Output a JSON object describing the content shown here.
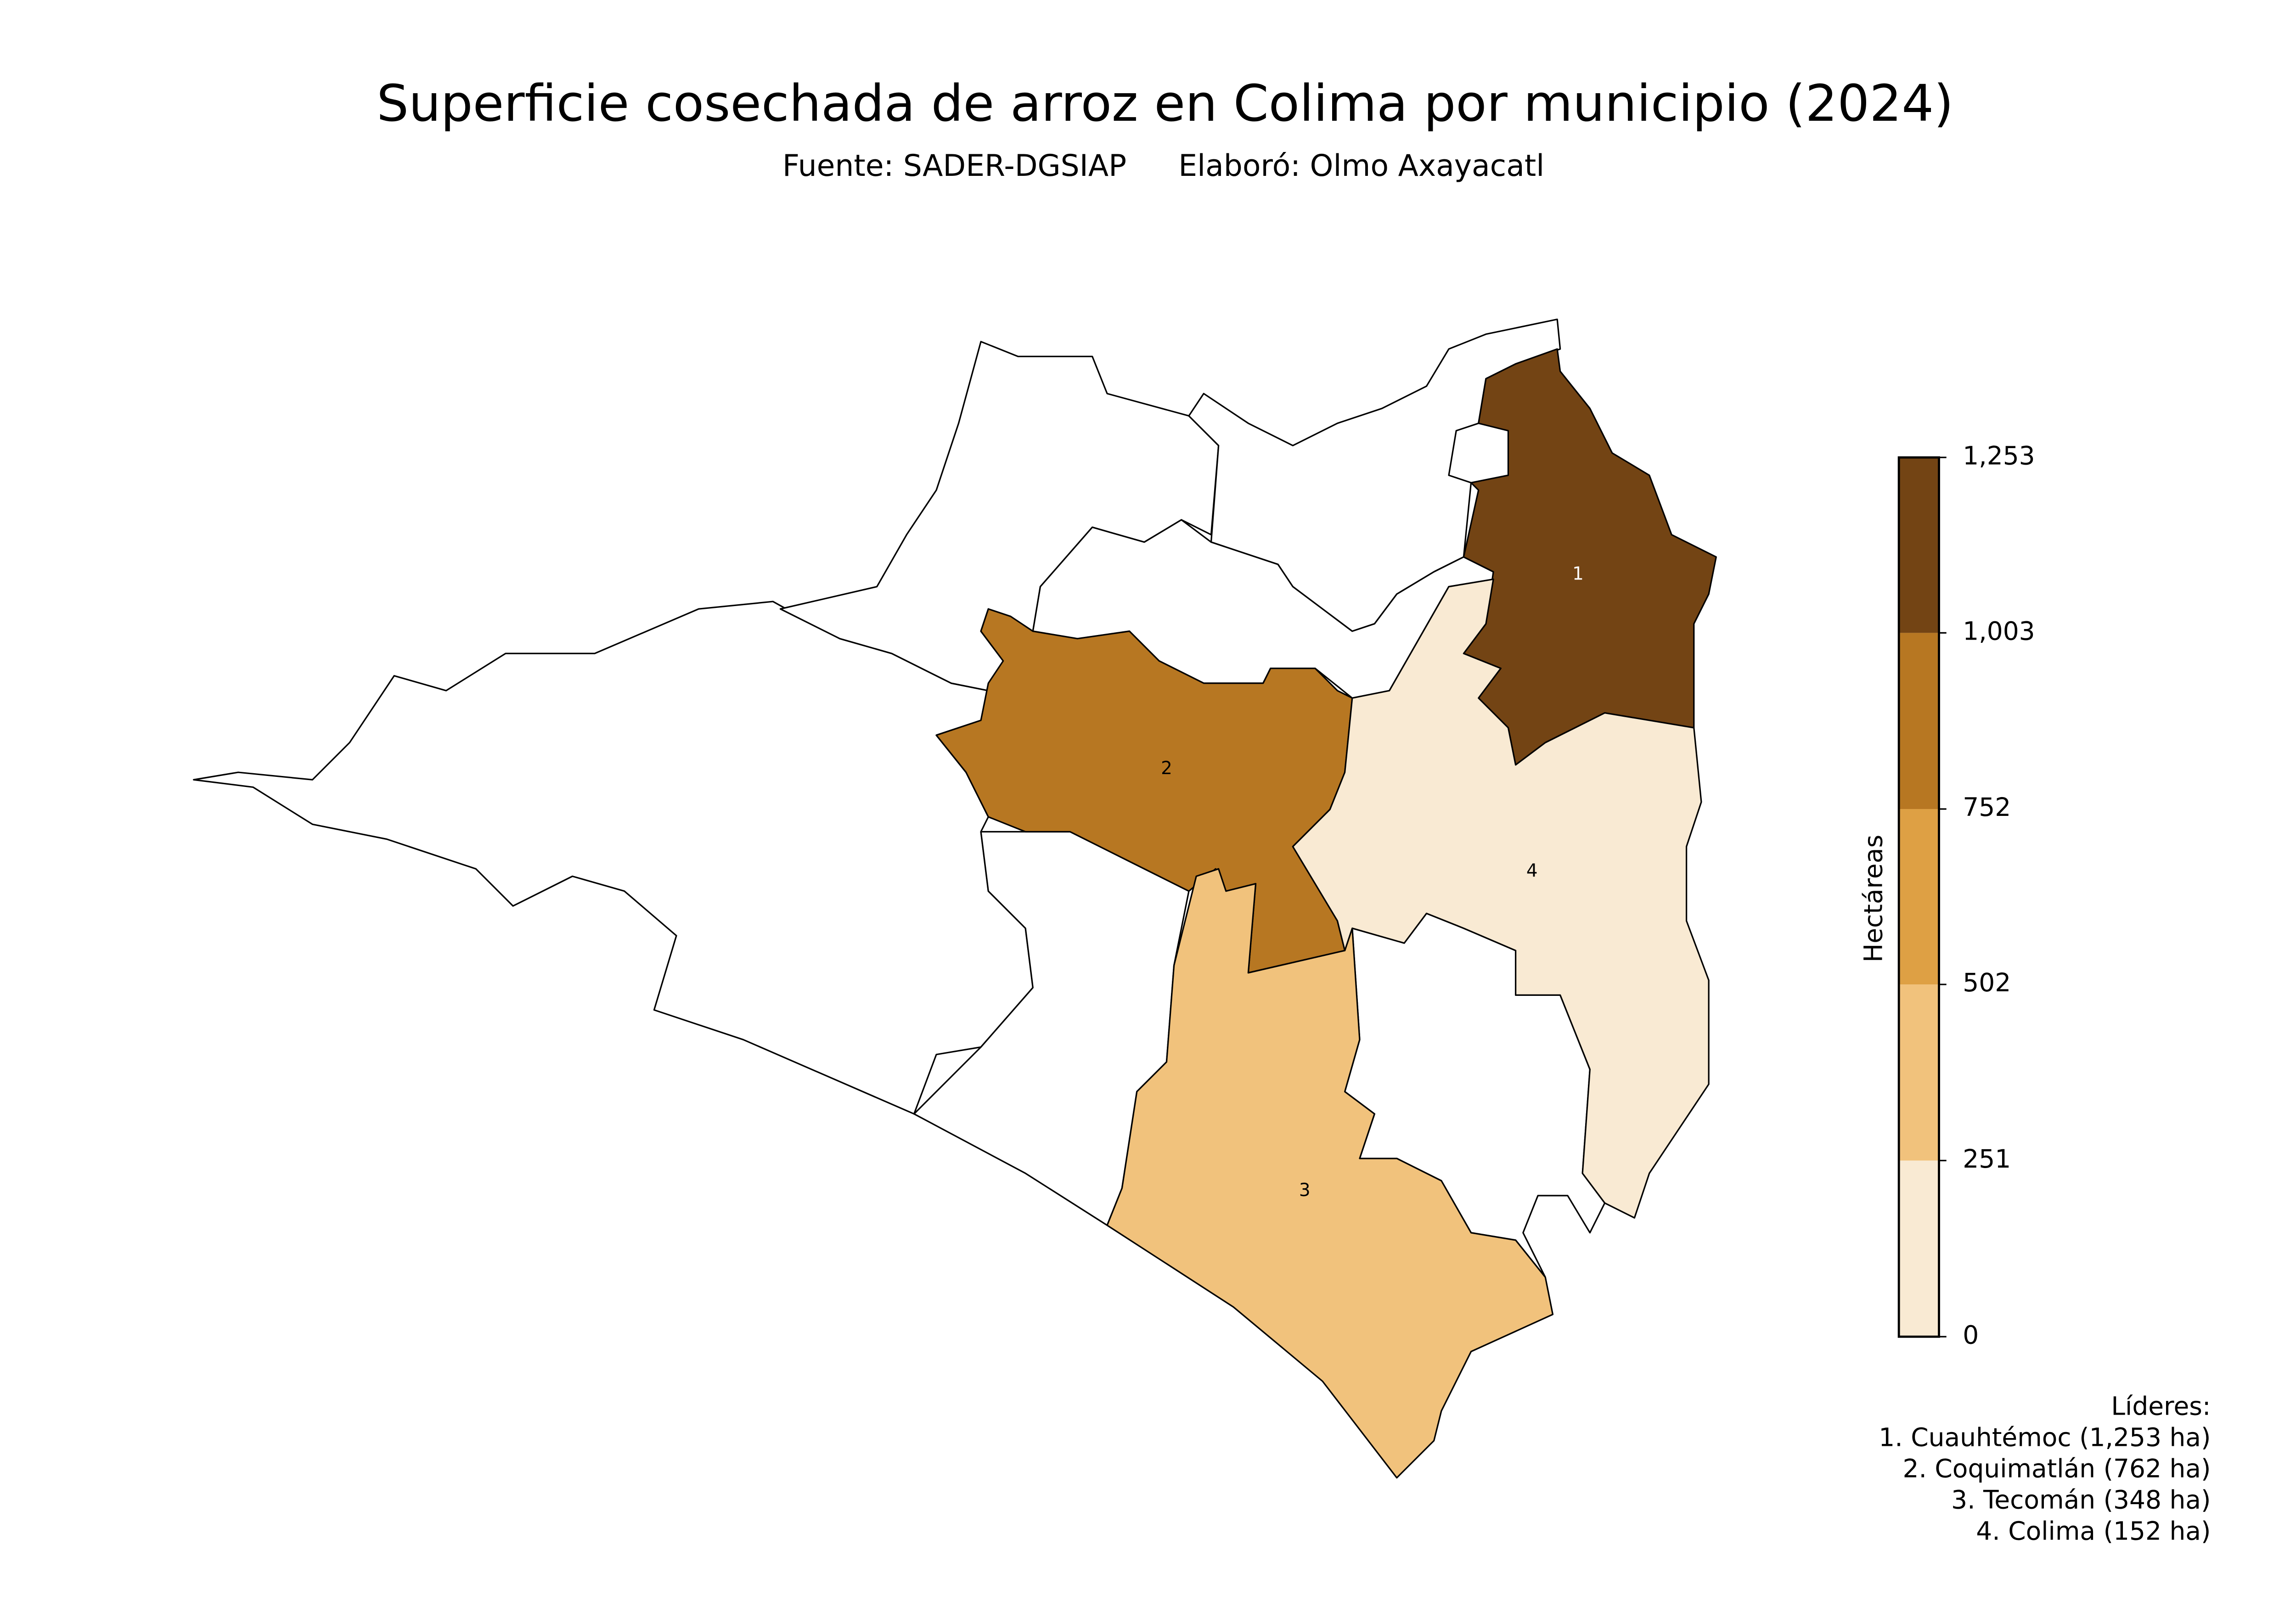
{
  "chart_data": {
    "type": "choropleth",
    "title": "Superficie cosechada de arroz en Colima por municipio (2024)",
    "subtitle": [
      "Fuente: SADER-DGSIAP",
      "Elaboró: Olmo Axayacatl"
    ],
    "regions": [
      {
        "label": "1",
        "value": 1253
      },
      {
        "label": "2",
        "value": 762
      },
      {
        "label": "3",
        "value": 348
      },
      {
        "label": "4",
        "value": 152
      }
    ],
    "colorbar": {
      "label": "Hectáreas",
      "lim": [
        0,
        1253
      ],
      "ticks": [
        0,
        251,
        502,
        752,
        {
          "value": 1003,
          "label": "1,003"
        },
        {
          "value": 1253,
          "label": "1,253"
        }
      ],
      "colors": [
        "#f9ead3",
        "#f1c27c",
        "#dea044",
        "#b77722",
        "#734414"
      ]
    },
    "leaders": {
      "title": "Líderes:",
      "entries": [
        "1. Cuauhtémoc (1,253 ha)",
        "2. Coquimatlán (762 ha)",
        "3. Tecomán (348 ha)",
        "4. Colima (152 ha)"
      ]
    }
  }
}
